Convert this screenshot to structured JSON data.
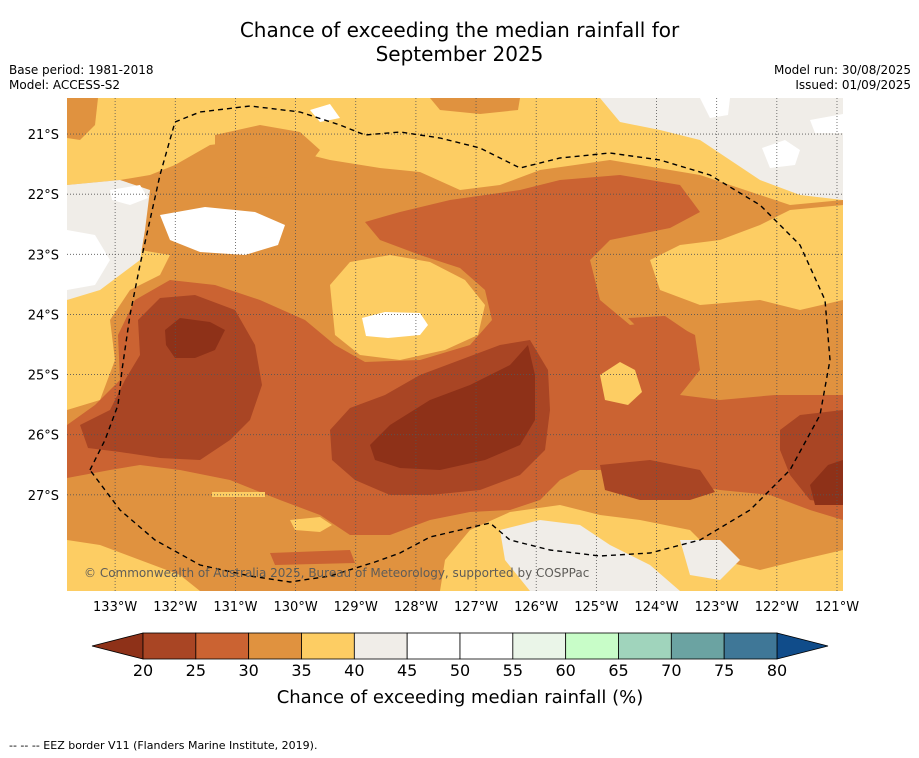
{
  "title_line1": "Chance of exceeding the median rainfall for",
  "title_line2": "September 2025",
  "info": {
    "base_period": "Base period: 1981-2018",
    "model": "Model: ACCESS-S2",
    "model_run": "Model run: 30/08/2025",
    "issued": "Issued: 01/09/2025"
  },
  "copyright": "© Commonwealth of Australia 2025, Bureau of Meteorology, supported by COSPPac",
  "footnote": "--  --  -- EEZ border V11 (Flanders Marine Institute, 2019).",
  "colors": {
    "c20_25": "#a94524",
    "c25_30": "#cb6332",
    "c30_35": "#e0923f",
    "c35_40": "#fdcd63",
    "c40_45": "#f0ede8",
    "c45_55": "#ffffff",
    "c55_60": "#eaf5e8",
    "c60_65": "#c8fdc8",
    "c65_70": "#a0d4bc",
    "c70_75": "#6ba3a2",
    "c75_80": "#3f7797",
    "below20": "#8e3118",
    "above80": "#104c8a"
  },
  "chart_data": {
    "type": "heatmap",
    "region": "Longitude 133.8°W to 120.9°W, Latitude 20.4°S to 28.6°S",
    "x_ticks": [
      "133°W",
      "132°W",
      "131°W",
      "130°W",
      "129°W",
      "128°W",
      "127°W",
      "126°W",
      "125°W",
      "124°W",
      "123°W",
      "122°W",
      "121°W"
    ],
    "y_ticks": [
      "21°S",
      "22°S",
      "23°S",
      "24°S",
      "25°S",
      "26°S",
      "27°S"
    ],
    "xlim": [
      -133.8,
      -120.9
    ],
    "ylim": [
      -28.6,
      -20.4
    ],
    "grid": true,
    "colorbar": {
      "label": "Chance of exceeding median rainfall (%)",
      "ticks": [
        "20",
        "25",
        "30",
        "35",
        "40",
        "45",
        "50",
        "55",
        "60",
        "65",
        "70",
        "75",
        "80"
      ],
      "extend": "both"
    },
    "qualitative_pattern": "Mostly 25-35% across the region; lowest (<25%) centered near 128°W, 25.8°S and 132°W, 24.3°S; 35-45% along northern and eastern fringes; a few small 45-55% areas in the north-west and north-east"
  }
}
